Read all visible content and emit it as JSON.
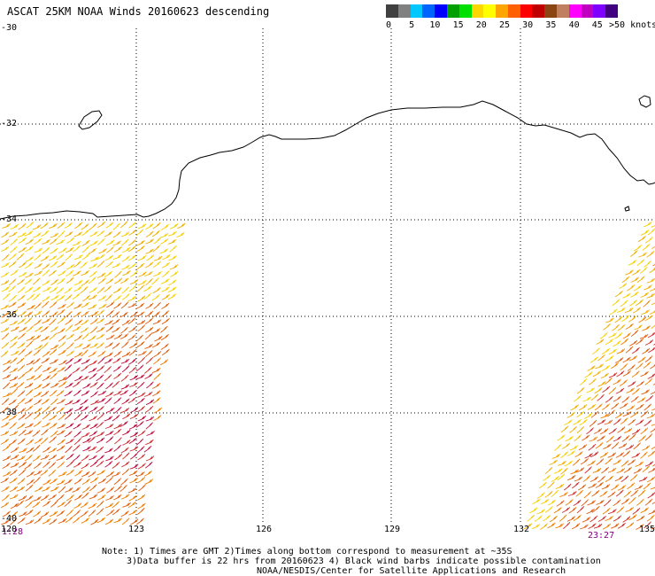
{
  "title": "ASCAT 25KM NOAA Winds 20160623 descending",
  "legend": {
    "colors": [
      "#404040",
      "#808080",
      "#00c8ff",
      "#0064ff",
      "#0000ff",
      "#00a000",
      "#00e000",
      "#ffd700",
      "#ffff00",
      "#ffa500",
      "#ff6000",
      "#ff0000",
      "#c00000",
      "#8b4513",
      "#c08060",
      "#ff00ff",
      "#c000c0",
      "#8000ff",
      "#400080"
    ],
    "ticks": [
      "0",
      "5",
      "10",
      "15",
      "20",
      "25",
      "30",
      "35",
      "40",
      "45",
      ">50 knots"
    ]
  },
  "map": {
    "lon_labels": [
      "120",
      "123",
      "126",
      "129",
      "132",
      "135"
    ],
    "lat_labels": [
      "-30",
      "-32",
      "-34",
      "-36",
      "-38",
      "-40"
    ],
    "lon_range": [
      120,
      135
    ],
    "lat_range": [
      -30,
      -40
    ],
    "gridlines": "dotted",
    "coastline": "southern Australia (Great Australian Bight)",
    "swath_times": [
      "1:28",
      "23:27"
    ]
  },
  "notes": {
    "line1": "Note: 1) Times are GMT 2)Times along bottom correspond to measurement at ~35S",
    "line2": "3)Data buffer is 22 hrs from 20160623 4) Black wind barbs indicate possible contamination",
    "line3": "NOAA/NESDIS/Center for Satellite Applications and Research"
  }
}
